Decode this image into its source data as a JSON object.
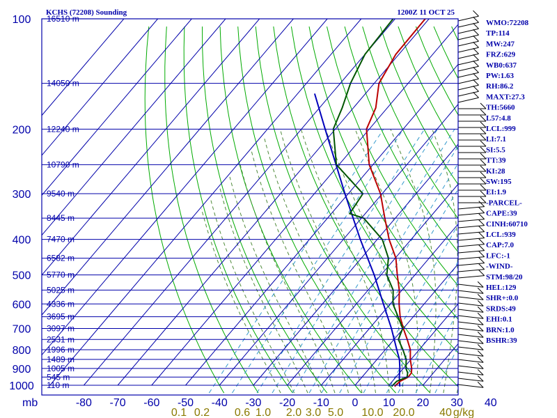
{
  "chart_data": {
    "type": "skew-t",
    "title_left": "KCHS (72208) Sounding",
    "title_right": "1200Z 11 OCT 25",
    "pressure_axis_label": "mb",
    "pressure_ticks": [
      100,
      200,
      300,
      400,
      500,
      600,
      700,
      800,
      900,
      1000
    ],
    "temperature_ticks": [
      -80,
      -70,
      -60,
      -50,
      -40,
      -30,
      -20,
      -10,
      0,
      10,
      20,
      30,
      40
    ],
    "mixing_ratio_labels": [
      "0.1",
      "0.2",
      "0.6",
      "1.0",
      "2.0",
      "3.0",
      "5.0",
      "10.0",
      "20.0",
      "40",
      "g/kg"
    ],
    "height_labels": [
      {
        "p": 100,
        "text": "16510 m"
      },
      {
        "p": 150,
        "text": "14050 m"
      },
      {
        "p": 200,
        "text": "12240 m"
      },
      {
        "p": 250,
        "text": "10790 m"
      },
      {
        "p": 300,
        "text": "9540 m"
      },
      {
        "p": 350,
        "text": "8445 m"
      },
      {
        "p": 400,
        "text": "7470 m"
      },
      {
        "p": 450,
        "text": "6582 m"
      },
      {
        "p": 500,
        "text": "5770 m"
      },
      {
        "p": 550,
        "text": "5025 m"
      },
      {
        "p": 600,
        "text": "4336 m"
      },
      {
        "p": 650,
        "text": "3695 m"
      },
      {
        "p": 700,
        "text": "3097 m"
      },
      {
        "p": 750,
        "text": "2531 m"
      },
      {
        "p": 800,
        "text": "1996 m"
      },
      {
        "p": 850,
        "text": "1489 m"
      },
      {
        "p": 900,
        "text": "1005 m"
      },
      {
        "p": 950,
        "text": "545 m"
      },
      {
        "p": 1000,
        "text": "110 m"
      }
    ],
    "temperature_profile": [
      [
        1008,
        12.0
      ],
      [
        1000,
        12.0
      ],
      [
        975,
        12.3
      ],
      [
        950,
        13.6
      ],
      [
        925,
        13.5
      ],
      [
        900,
        12.5
      ],
      [
        850,
        9.8
      ],
      [
        800,
        7.4
      ],
      [
        750,
        3.9
      ],
      [
        700,
        0.0
      ],
      [
        650,
        -3.9
      ],
      [
        600,
        -7.4
      ],
      [
        550,
        -10.8
      ],
      [
        500,
        -15.2
      ],
      [
        450,
        -19.8
      ],
      [
        400,
        -26.5
      ],
      [
        350,
        -33.1
      ],
      [
        300,
        -40.5
      ],
      [
        250,
        -51.1
      ],
      [
        200,
        -60.8
      ],
      [
        175,
        -63.4
      ],
      [
        150,
        -68.6
      ],
      [
        125,
        -70.9
      ],
      [
        100,
        -71.1
      ]
    ],
    "dewpoint_profile": [
      [
        1008,
        11.1
      ],
      [
        1000,
        11.1
      ],
      [
        975,
        11.3
      ],
      [
        950,
        13.3
      ],
      [
        925,
        12.4
      ],
      [
        900,
        10.8
      ],
      [
        850,
        8.6
      ],
      [
        800,
        5.2
      ],
      [
        750,
        1.3
      ],
      [
        700,
        -0.2
      ],
      [
        650,
        -4.5
      ],
      [
        600,
        -9.2
      ],
      [
        550,
        -12.6
      ],
      [
        500,
        -18.3
      ],
      [
        450,
        -22.0
      ],
      [
        400,
        -28.5
      ],
      [
        350,
        -39.3
      ],
      [
        340,
        -44.6
      ],
      [
        300,
        -45.7
      ],
      [
        250,
        -60.8
      ],
      [
        200,
        -70.6
      ],
      [
        175,
        -73.3
      ],
      [
        150,
        -77.0
      ],
      [
        125,
        -80.0
      ],
      [
        100,
        -80.6
      ]
    ],
    "parcel_profile": [
      [
        1008,
        13.5
      ],
      [
        950,
        11.0
      ],
      [
        900,
        9.0
      ],
      [
        850,
        6.6
      ],
      [
        800,
        3.4
      ],
      [
        700,
        -3.5
      ],
      [
        600,
        -12.0
      ],
      [
        500,
        -22.0
      ],
      [
        400,
        -35.0
      ],
      [
        300,
        -51.0
      ],
      [
        200,
        -73.0
      ],
      [
        160,
        -85.0
      ]
    ],
    "indices": [
      "WMO:72208",
      "TP:114",
      "MW:247",
      "FRZ:629",
      "WB0:637",
      "PW:1.63",
      "RH:86.2",
      "MAXT:27.3",
      "TH:5660",
      "L57:4.8",
      "LCL:999",
      "LI:7.1",
      "SI:5.5",
      "TT:39",
      "KI:28",
      "SW:195",
      "EI:1.9",
      "-PARCEL-",
      "CAPE:39",
      "CINH:60710",
      "LCL:939",
      "CAP:7.0",
      "LFC:-1",
      "-WIND-",
      "STM:98/20",
      "HEL:129",
      "SHR+:0.0",
      "SRDS:49",
      "EHI:0.1",
      "BRN:1.0",
      "BSHR:39"
    ],
    "colors": {
      "frame": "#0000aa",
      "isotherm": "#0000aa",
      "dry_adiabat": "#00aa00",
      "moist_adiabat": "#4f8a3a",
      "mixing_ratio": "#3399cc",
      "temperature": "#bb0000",
      "dewpoint": "#005500",
      "parcel": "#0000bb",
      "barb": "#000000",
      "mix_label": "#8a7a00"
    }
  }
}
